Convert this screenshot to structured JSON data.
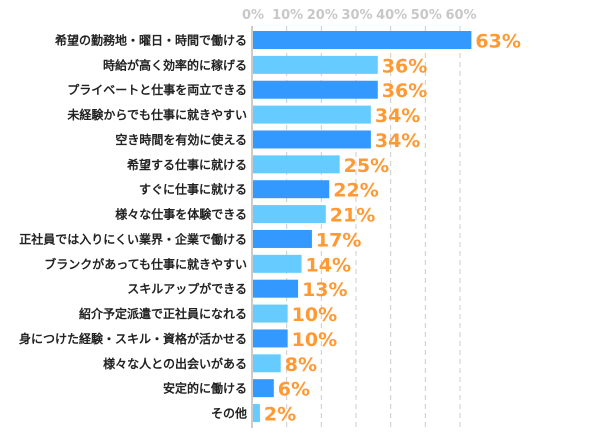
{
  "chart_data": {
    "type": "bar",
    "orientation": "horizontal",
    "categories": [
      "希望の勤務地・曜日・時間で働ける",
      "時給が高く効率的に稼げる",
      "プライベートと仕事を両立できる",
      "未経験からでも仕事に就きやすい",
      "空き時間を有効に使える",
      "希望する仕事に就ける",
      "すぐに仕事に就ける",
      "様々な仕事を体験できる",
      "正社員では入りにくい業界・企業で働ける",
      "ブランクがあっても仕事に就きやすい",
      "スキルアップができる",
      "紹介予定派遣で正社員になれる",
      "身につけた経験・スキル・資格が活かせる",
      "様々な人との出会いがある",
      "安定的に働ける",
      "その他"
    ],
    "values": [
      63,
      36,
      36,
      34,
      34,
      25,
      22,
      21,
      17,
      14,
      13,
      10,
      10,
      8,
      6,
      2
    ],
    "data_labels": [
      "63%",
      "36%",
      "36%",
      "34%",
      "34%",
      "25%",
      "22%",
      "21%",
      "17%",
      "14%",
      "13%",
      "10%",
      "10%",
      "8%",
      "6%",
      "2%"
    ],
    "x_ticks": [
      "0%",
      "10%",
      "20%",
      "30%",
      "40%",
      "50%",
      "60%"
    ],
    "xlim": [
      0,
      60
    ],
    "x_axis_position": "top",
    "grid": "vertical dashed",
    "colors": {
      "bar_dark": "#3399ff",
      "bar_light": "#66ccff",
      "label": "#ff9933",
      "tick": "#c8c8c8",
      "grid": "#cccccc"
    }
  }
}
